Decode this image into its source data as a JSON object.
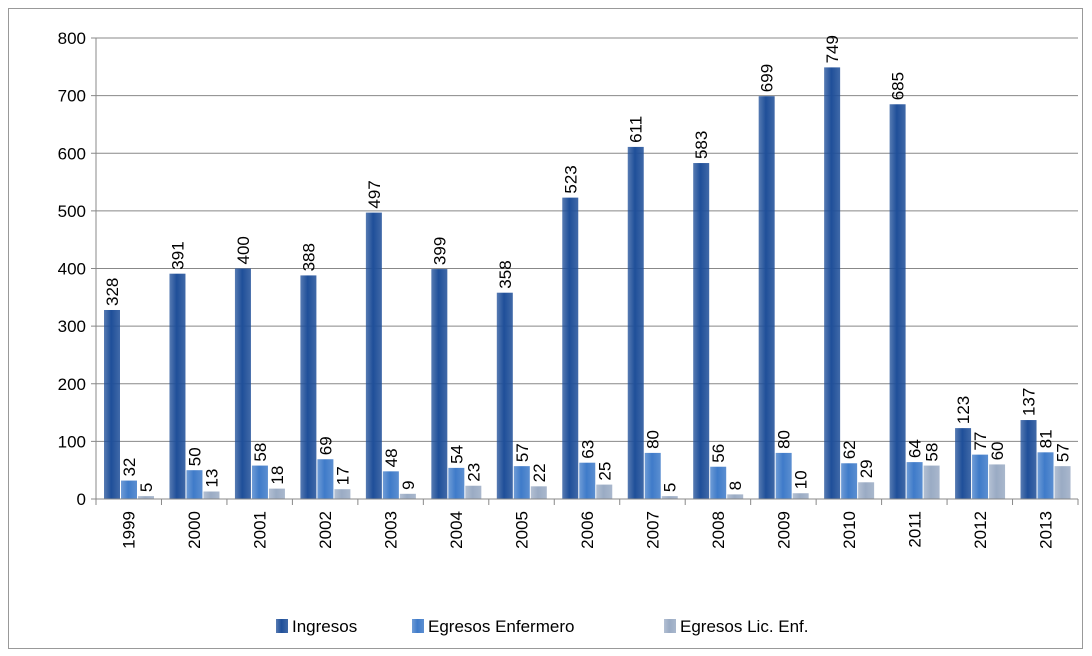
{
  "chart_data": {
    "type": "bar",
    "categories": [
      "1999",
      "2000",
      "2001",
      "2002",
      "2003",
      "2004",
      "2005",
      "2006",
      "2007",
      "2008",
      "2009",
      "2010",
      "2011",
      "2012",
      "2013"
    ],
    "series": [
      {
        "name": "Ingresos",
        "color": "#1f4f99",
        "values": [
          328,
          391,
          400,
          388,
          497,
          399,
          358,
          523,
          611,
          583,
          699,
          749,
          685,
          123,
          137
        ]
      },
      {
        "name": "Egresos Enfermero",
        "color": "#3f7bc9",
        "values": [
          32,
          50,
          58,
          69,
          48,
          54,
          57,
          63,
          80,
          56,
          80,
          62,
          64,
          77,
          81
        ]
      },
      {
        "name": "Egresos Lic. Enf.",
        "color": "#9aabc4",
        "values": [
          5,
          13,
          18,
          17,
          9,
          23,
          22,
          25,
          5,
          8,
          10,
          29,
          58,
          60,
          57
        ]
      }
    ],
    "ylim": [
      0,
      800
    ],
    "yticks": [
      0,
      100,
      200,
      300,
      400,
      500,
      600,
      700,
      800
    ],
    "grid": true,
    "legend": "bottom"
  }
}
